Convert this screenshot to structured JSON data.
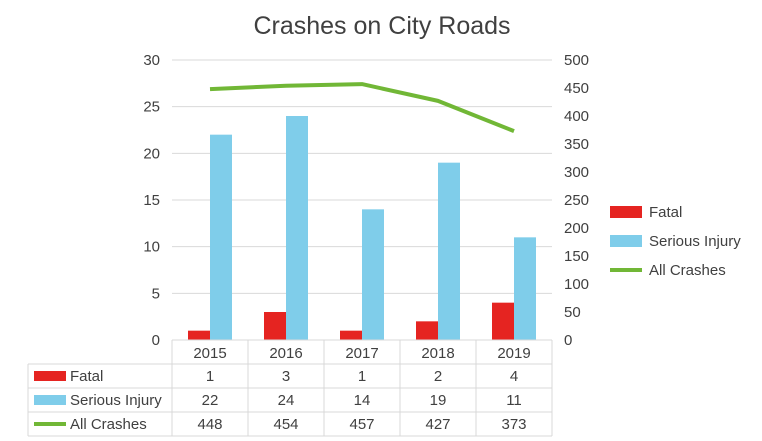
{
  "chart_data": {
    "type": "bar",
    "title": "Crashes on City Roads",
    "categories": [
      "2015",
      "2016",
      "2017",
      "2018",
      "2019"
    ],
    "series": [
      {
        "name": "Fatal",
        "type": "bar",
        "axis": "left",
        "color": "#e52421",
        "values": [
          1,
          3,
          1,
          2,
          4
        ]
      },
      {
        "name": "Serious Injury",
        "type": "bar",
        "axis": "left",
        "color": "#7fcdea",
        "values": [
          22,
          24,
          14,
          19,
          11
        ]
      },
      {
        "name": "All Crashes",
        "type": "line",
        "axis": "right",
        "color": "#71b736",
        "values": [
          448,
          454,
          457,
          427,
          373
        ]
      }
    ],
    "y_left": {
      "min": 0,
      "max": 30,
      "step": 5
    },
    "y_right": {
      "min": 0,
      "max": 500,
      "step": 50
    },
    "grid": true,
    "legend": "right",
    "data_table": true
  }
}
